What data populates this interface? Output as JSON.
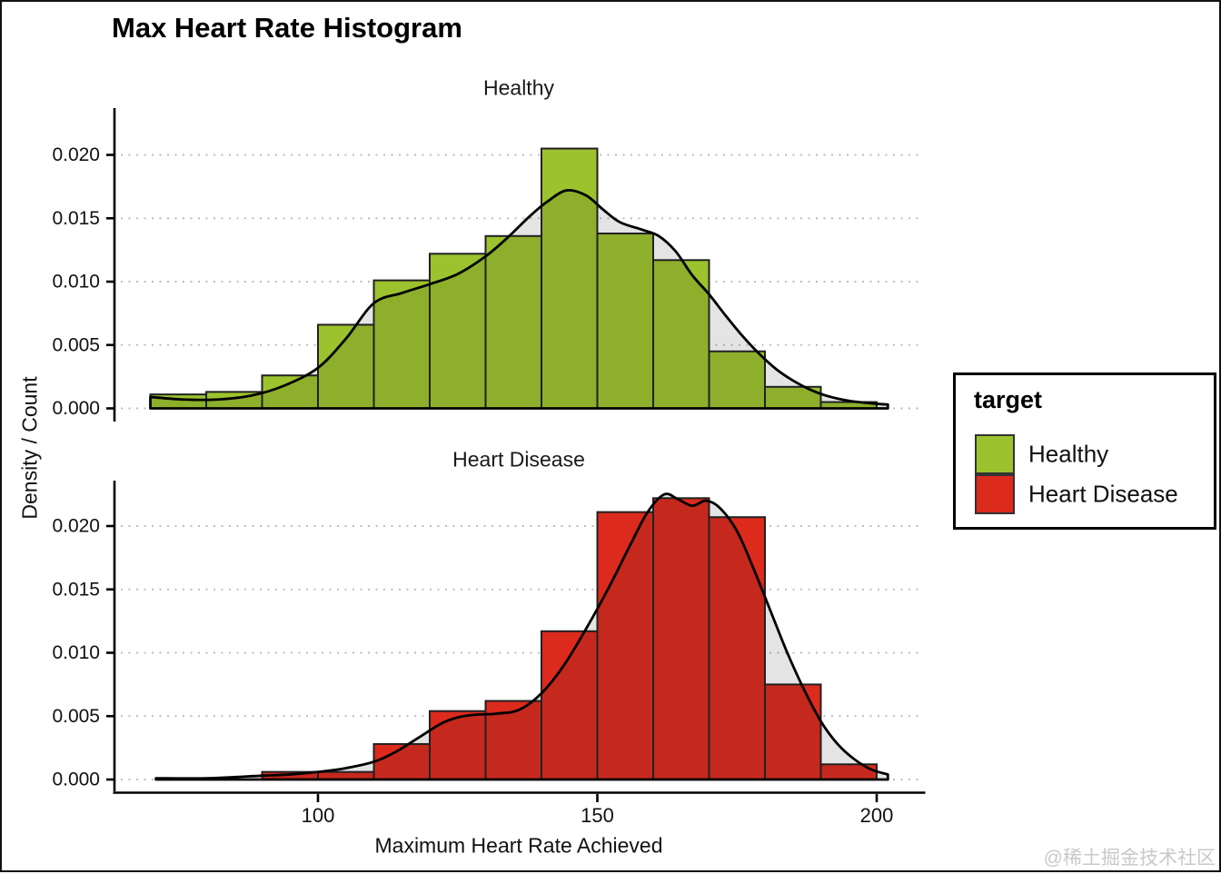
{
  "watermark": "@稀土掘金技术社区",
  "legend": {
    "title": "target",
    "position": "right",
    "items": [
      {
        "label": "Healthy",
        "color": "#9CC32D"
      },
      {
        "label": "Heart Disease",
        "color": "#DC2A1D"
      }
    ]
  },
  "chart_data": {
    "type": "bar",
    "subtype": "faceted-histogram-with-density-curve",
    "title": "Max Heart Rate Histogram",
    "xlabel": "Maximum Heart Rate Achieved",
    "ylabel": "Density / Count",
    "grid": "dotted-horizontal",
    "xlim": [
      63,
      209
    ],
    "ylim": [
      0,
      0.0235
    ],
    "bin_width": 10,
    "x_ticks": [
      {
        "v": 100,
        "label": "100"
      },
      {
        "v": 150,
        "label": "150"
      },
      {
        "v": 200,
        "label": "200"
      }
    ],
    "y_ticks": [
      {
        "v": 0.0,
        "label": "0.000"
      },
      {
        "v": 0.005,
        "label": "0.005"
      },
      {
        "v": 0.01,
        "label": "0.010"
      },
      {
        "v": 0.015,
        "label": "0.015"
      },
      {
        "v": 0.02,
        "label": "0.020"
      }
    ],
    "density_overlay_fill": "rgba(33,33,33,0.12)",
    "facets": [
      {
        "label": "Healthy",
        "color": "#9CC32D",
        "bin_start": 70,
        "densities": [
          0.0011,
          0.0013,
          0.0026,
          0.0066,
          0.0101,
          0.0122,
          0.0136,
          0.0205,
          0.0138,
          0.0117,
          0.0045,
          0.0017,
          0.0005
        ],
        "density_curve": [
          [
            70,
            0.0009
          ],
          [
            76,
            0.0007
          ],
          [
            82,
            0.0007
          ],
          [
            88,
            0.001
          ],
          [
            94,
            0.0018
          ],
          [
            100,
            0.0032
          ],
          [
            105,
            0.0055
          ],
          [
            110,
            0.0083
          ],
          [
            115,
            0.0091
          ],
          [
            120,
            0.0098
          ],
          [
            125,
            0.0106
          ],
          [
            130,
            0.012
          ],
          [
            134,
            0.0135
          ],
          [
            138,
            0.0152
          ],
          [
            141,
            0.0163
          ],
          [
            144.5,
            0.0172
          ],
          [
            148,
            0.0168
          ],
          [
            151,
            0.0157
          ],
          [
            154,
            0.0147
          ],
          [
            158,
            0.0141
          ],
          [
            161,
            0.0136
          ],
          [
            164,
            0.0124
          ],
          [
            167,
            0.0105
          ],
          [
            170,
            0.009
          ],
          [
            173,
            0.0073
          ],
          [
            176,
            0.0057
          ],
          [
            179,
            0.0043
          ],
          [
            182,
            0.0031
          ],
          [
            185,
            0.0022
          ],
          [
            188,
            0.0015
          ],
          [
            191,
            0.001
          ],
          [
            195,
            0.0006
          ],
          [
            199,
            0.0004
          ],
          [
            202,
            0.0003
          ]
        ]
      },
      {
        "label": "Heart Disease",
        "color": "#DC2A1D",
        "bin_start": 90,
        "densities": [
          0.0006,
          0.0006,
          0.0028,
          0.0054,
          0.0062,
          0.0117,
          0.0211,
          0.0222,
          0.0207,
          0.0075,
          0.0012
        ],
        "density_curve": [
          [
            71,
            0.0001
          ],
          [
            80,
            0.0001
          ],
          [
            90,
            0.0003
          ],
          [
            95,
            0.0004
          ],
          [
            100,
            0.0006
          ],
          [
            105,
            0.0009
          ],
          [
            110,
            0.0014
          ],
          [
            114,
            0.0022
          ],
          [
            118,
            0.0033
          ],
          [
            122,
            0.0044
          ],
          [
            125,
            0.0049
          ],
          [
            128,
            0.0051
          ],
          [
            132,
            0.0052
          ],
          [
            136,
            0.0055
          ],
          [
            140,
            0.0068
          ],
          [
            144,
            0.009
          ],
          [
            148,
            0.0119
          ],
          [
            152,
            0.0151
          ],
          [
            156,
            0.0186
          ],
          [
            159,
            0.0211
          ],
          [
            162,
            0.0225
          ],
          [
            164.5,
            0.0221
          ],
          [
            167,
            0.0216
          ],
          [
            169.5,
            0.022
          ],
          [
            172,
            0.0214
          ],
          [
            175,
            0.0196
          ],
          [
            178,
            0.0166
          ],
          [
            181,
            0.0133
          ],
          [
            184,
            0.01
          ],
          [
            187,
            0.0071
          ],
          [
            190,
            0.0046
          ],
          [
            193,
            0.0028
          ],
          [
            196,
            0.0016
          ],
          [
            199,
            0.0008
          ],
          [
            202,
            0.0004
          ]
        ]
      }
    ]
  }
}
